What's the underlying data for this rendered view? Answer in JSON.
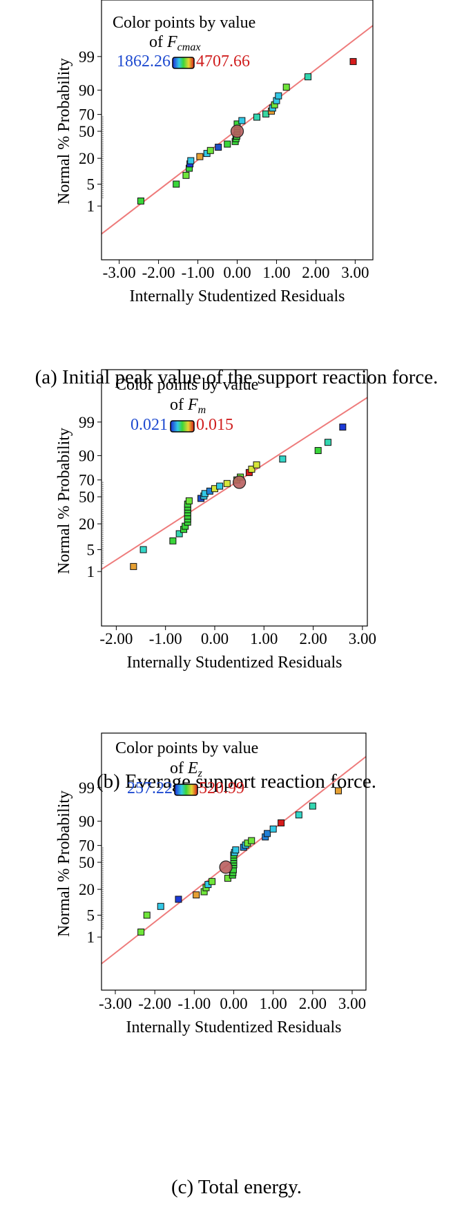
{
  "chart_data": [
    {
      "type": "scatter",
      "title": "",
      "xlabel": "Internally Studentized Residuals",
      "ylabel": "Normal % Probability",
      "xlim": [
        -3.45,
        3.45
      ],
      "xticks": [
        -3,
        -2,
        -1,
        0,
        1,
        2,
        3
      ],
      "xtick_labels": [
        "-3.00",
        "-2.00",
        "-1.00",
        "0.00",
        "1.00",
        "2.00",
        "3.00"
      ],
      "yticks": [
        1,
        5,
        20,
        50,
        70,
        90,
        99
      ],
      "ytick_labels": [
        "1",
        "5",
        "20",
        "50",
        "70",
        "90",
        "99"
      ],
      "legend": {
        "title": "Color points by value",
        "of_label": "of ",
        "var": "F",
        "var_sub": "cmax",
        "min": "1862.26",
        "max": "4707.66"
      },
      "reference_line": {
        "x": [
          -3.45,
          3.45
        ],
        "p": [
          0.07,
          99.95
        ]
      },
      "highlight": {
        "x": 0.0,
        "p": 50
      },
      "points": [
        {
          "x": -2.45,
          "p": 1.5,
          "c": "#3ad63a"
        },
        {
          "x": -1.55,
          "p": 5,
          "c": "#3ad63a"
        },
        {
          "x": -1.3,
          "p": 8.5,
          "c": "#6fe63a"
        },
        {
          "x": -1.22,
          "p": 12.5,
          "c": "#3ad63a"
        },
        {
          "x": -1.2,
          "p": 15.5,
          "c": "#1c3ad6"
        },
        {
          "x": -1.18,
          "p": 18,
          "c": "#33c8e6"
        },
        {
          "x": -0.95,
          "p": 21.5,
          "c": "#e6a033"
        },
        {
          "x": -0.77,
          "p": 24.5,
          "c": "#33c8e6"
        },
        {
          "x": -0.68,
          "p": 27.5,
          "c": "#6fe63a"
        },
        {
          "x": -0.48,
          "p": 31,
          "c": "#2050c8"
        },
        {
          "x": -0.25,
          "p": 34.5,
          "c": "#3ad63a"
        },
        {
          "x": -0.05,
          "p": 37.5,
          "c": "#3ad63a"
        },
        {
          "x": -0.03,
          "p": 41,
          "c": "#3ad63a"
        },
        {
          "x": -0.01,
          "p": 44,
          "c": "#3ad63a"
        },
        {
          "x": 0.0,
          "p": 47,
          "c": "#3ad63a"
        },
        {
          "x": 0.0,
          "p": 50,
          "c": "#3ad63a"
        },
        {
          "x": 0.0,
          "p": 53,
          "c": "#3ad63a"
        },
        {
          "x": 0.0,
          "p": 56,
          "c": "#3ad63a"
        },
        {
          "x": 0.0,
          "p": 59,
          "c": "#3ad63a"
        },
        {
          "x": 0.12,
          "p": 63,
          "c": "#33c8e6"
        },
        {
          "x": 0.5,
          "p": 67,
          "c": "#33d6b0"
        },
        {
          "x": 0.73,
          "p": 70.5,
          "c": "#3ad6a0"
        },
        {
          "x": 0.87,
          "p": 73.5,
          "c": "#e6a033"
        },
        {
          "x": 0.9,
          "p": 76.5,
          "c": "#33c8e6"
        },
        {
          "x": 0.95,
          "p": 79.5,
          "c": "#6fe63a"
        },
        {
          "x": 1.0,
          "p": 83,
          "c": "#33c8e6"
        },
        {
          "x": 1.05,
          "p": 86.5,
          "c": "#33c8e6"
        },
        {
          "x": 1.25,
          "p": 91.5,
          "c": "#6fe63a"
        },
        {
          "x": 1.8,
          "p": 95.5,
          "c": "#33d6b0"
        },
        {
          "x": 2.95,
          "p": 98.5,
          "c": "#d61c1c"
        }
      ]
    },
    {
      "type": "scatter",
      "title": "",
      "xlabel": "Internally Studentized Residuals",
      "ylabel": "Normal % Probability",
      "xlim": [
        -2.3,
        3.1
      ],
      "xticks": [
        -2,
        -1,
        0,
        1,
        2,
        3
      ],
      "xtick_labels": [
        "-2.00",
        "-1.00",
        "0.00",
        "1.00",
        "2.00",
        "3.00"
      ],
      "yticks": [
        1,
        5,
        20,
        50,
        70,
        90,
        99
      ],
      "ytick_labels": [
        "1",
        "5",
        "20",
        "50",
        "70",
        "90",
        "99"
      ],
      "legend": {
        "title": "Color points by value",
        "of_label": "of ",
        "var": "F",
        "var_sub": "m",
        "min": "0.021",
        "max": "0.015"
      },
      "reference_line": {
        "x": [
          -2.3,
          3.1
        ],
        "p": [
          1.2,
          99.9
        ]
      },
      "highlight": {
        "x": 0.5,
        "p": 67.5
      },
      "points": [
        {
          "x": -1.65,
          "p": 1.5,
          "c": "#e6a033"
        },
        {
          "x": -1.45,
          "p": 5,
          "c": "#33d6c8"
        },
        {
          "x": -0.85,
          "p": 8.5,
          "c": "#3ad63a"
        },
        {
          "x": -0.72,
          "p": 12.5,
          "c": "#33d6b0"
        },
        {
          "x": -0.63,
          "p": 15.5,
          "c": "#3ad63a"
        },
        {
          "x": -0.6,
          "p": 18,
          "c": "#3ad63a"
        },
        {
          "x": -0.55,
          "p": 21.5,
          "c": "#3ad63a"
        },
        {
          "x": -0.55,
          "p": 24.5,
          "c": "#3ad63a"
        },
        {
          "x": -0.55,
          "p": 27.5,
          "c": "#3ad63a"
        },
        {
          "x": -0.55,
          "p": 31,
          "c": "#3ad63a"
        },
        {
          "x": -0.55,
          "p": 34.5,
          "c": "#3ad63a"
        },
        {
          "x": -0.55,
          "p": 37.5,
          "c": "#3ad63a"
        },
        {
          "x": -0.55,
          "p": 41,
          "c": "#3ad63a"
        },
        {
          "x": -0.52,
          "p": 45,
          "c": "#6fe63a"
        },
        {
          "x": -0.28,
          "p": 48,
          "c": "#2050c8"
        },
        {
          "x": -0.22,
          "p": 51,
          "c": "#33c8e6"
        },
        {
          "x": -0.2,
          "p": 54,
          "c": "#33c8e6"
        },
        {
          "x": -0.1,
          "p": 57,
          "c": "#2080d6"
        },
        {
          "x": 0.0,
          "p": 60,
          "c": "#d6e63a"
        },
        {
          "x": 0.1,
          "p": 63,
          "c": "#33c8e6"
        },
        {
          "x": 0.25,
          "p": 66,
          "c": "#d6e63a"
        },
        {
          "x": 0.45,
          "p": 70,
          "c": "#6fe63a"
        },
        {
          "x": 0.52,
          "p": 73,
          "c": "#6fe63a"
        },
        {
          "x": 0.7,
          "p": 77.5,
          "c": "#d61c1c"
        },
        {
          "x": 0.75,
          "p": 80.5,
          "c": "#d6e63a"
        },
        {
          "x": 0.85,
          "p": 84,
          "c": "#d6e63a"
        },
        {
          "x": 1.38,
          "p": 88,
          "c": "#33d6c8"
        },
        {
          "x": 2.1,
          "p": 92.5,
          "c": "#3ad63a"
        },
        {
          "x": 2.3,
          "p": 95.5,
          "c": "#33d6b0"
        },
        {
          "x": 2.6,
          "p": 98.5,
          "c": "#1c3ad6"
        }
      ]
    },
    {
      "type": "scatter",
      "title": "",
      "xlabel": "Internally Studentized Residuals",
      "ylabel": "Normal % Probability",
      "xlim": [
        -3.35,
        3.35
      ],
      "xticks": [
        -3,
        -2,
        -1,
        0,
        1,
        2,
        3
      ],
      "xtick_labels": [
        "-3.00",
        "-2.00",
        "-1.00",
        "0.00",
        "1.00",
        "2.00",
        "3.00"
      ],
      "yticks": [
        1,
        5,
        20,
        50,
        70,
        90,
        99
      ],
      "ytick_labels": [
        "1",
        "5",
        "20",
        "50",
        "70",
        "90",
        "99"
      ],
      "legend": {
        "title": "Color points by value",
        "of_label": "of ",
        "var": "E",
        "var_sub": "z",
        "min": "257.22",
        "max": "520.99"
      },
      "reference_line": {
        "x": [
          -3.35,
          3.35
        ],
        "p": [
          0.08,
          99.95
        ]
      },
      "highlight": {
        "x": -0.2,
        "p": 44
      },
      "points": [
        {
          "x": -2.35,
          "p": 1.5,
          "c": "#6fe63a"
        },
        {
          "x": -2.2,
          "p": 5,
          "c": "#6fe63a"
        },
        {
          "x": -1.85,
          "p": 8.5,
          "c": "#33c8e6"
        },
        {
          "x": -1.4,
          "p": 12.5,
          "c": "#1c3ad6"
        },
        {
          "x": -0.95,
          "p": 15.5,
          "c": "#e6a033"
        },
        {
          "x": -0.75,
          "p": 18,
          "c": "#6fe63a"
        },
        {
          "x": -0.7,
          "p": 21.5,
          "c": "#6fe63a"
        },
        {
          "x": -0.65,
          "p": 24.5,
          "c": "#33c8e6"
        },
        {
          "x": -0.55,
          "p": 27.5,
          "c": "#6fe63a"
        },
        {
          "x": -0.15,
          "p": 31,
          "c": "#6fe63a"
        },
        {
          "x": -0.03,
          "p": 34.5,
          "c": "#3ad63a"
        },
        {
          "x": -0.02,
          "p": 37.5,
          "c": "#3ad63a"
        },
        {
          "x": -0.01,
          "p": 41,
          "c": "#3ad63a"
        },
        {
          "x": 0.0,
          "p": 47,
          "c": "#3ad63a"
        },
        {
          "x": 0.0,
          "p": 50,
          "c": "#3ad63a"
        },
        {
          "x": 0.0,
          "p": 53,
          "c": "#3ad63a"
        },
        {
          "x": 0.0,
          "p": 56,
          "c": "#3ad63a"
        },
        {
          "x": 0.0,
          "p": 59,
          "c": "#3ad63a"
        },
        {
          "x": 0.02,
          "p": 62,
          "c": "#33c8e6"
        },
        {
          "x": 0.05,
          "p": 65,
          "c": "#33c8e6"
        },
        {
          "x": 0.25,
          "p": 68,
          "c": "#2080d6"
        },
        {
          "x": 0.3,
          "p": 70.5,
          "c": "#33c8e6"
        },
        {
          "x": 0.35,
          "p": 72.5,
          "c": "#6fe63a"
        },
        {
          "x": 0.45,
          "p": 75,
          "c": "#6fe63a"
        },
        {
          "x": 0.8,
          "p": 78.5,
          "c": "#2080d6"
        },
        {
          "x": 0.85,
          "p": 81.5,
          "c": "#2080d6"
        },
        {
          "x": 1.0,
          "p": 85,
          "c": "#33c8e6"
        },
        {
          "x": 1.2,
          "p": 89,
          "c": "#d61c1c"
        },
        {
          "x": 1.65,
          "p": 93,
          "c": "#33d6c8"
        },
        {
          "x": 2.0,
          "p": 96,
          "c": "#33d6b0"
        },
        {
          "x": 2.65,
          "p": 98.7,
          "c": "#e6a033"
        }
      ]
    }
  ],
  "captions": {
    "a": "(a) Initial peak value of the support reaction force.",
    "b": "(b) Everage support reaction force.",
    "c": "(c) Total energy."
  }
}
